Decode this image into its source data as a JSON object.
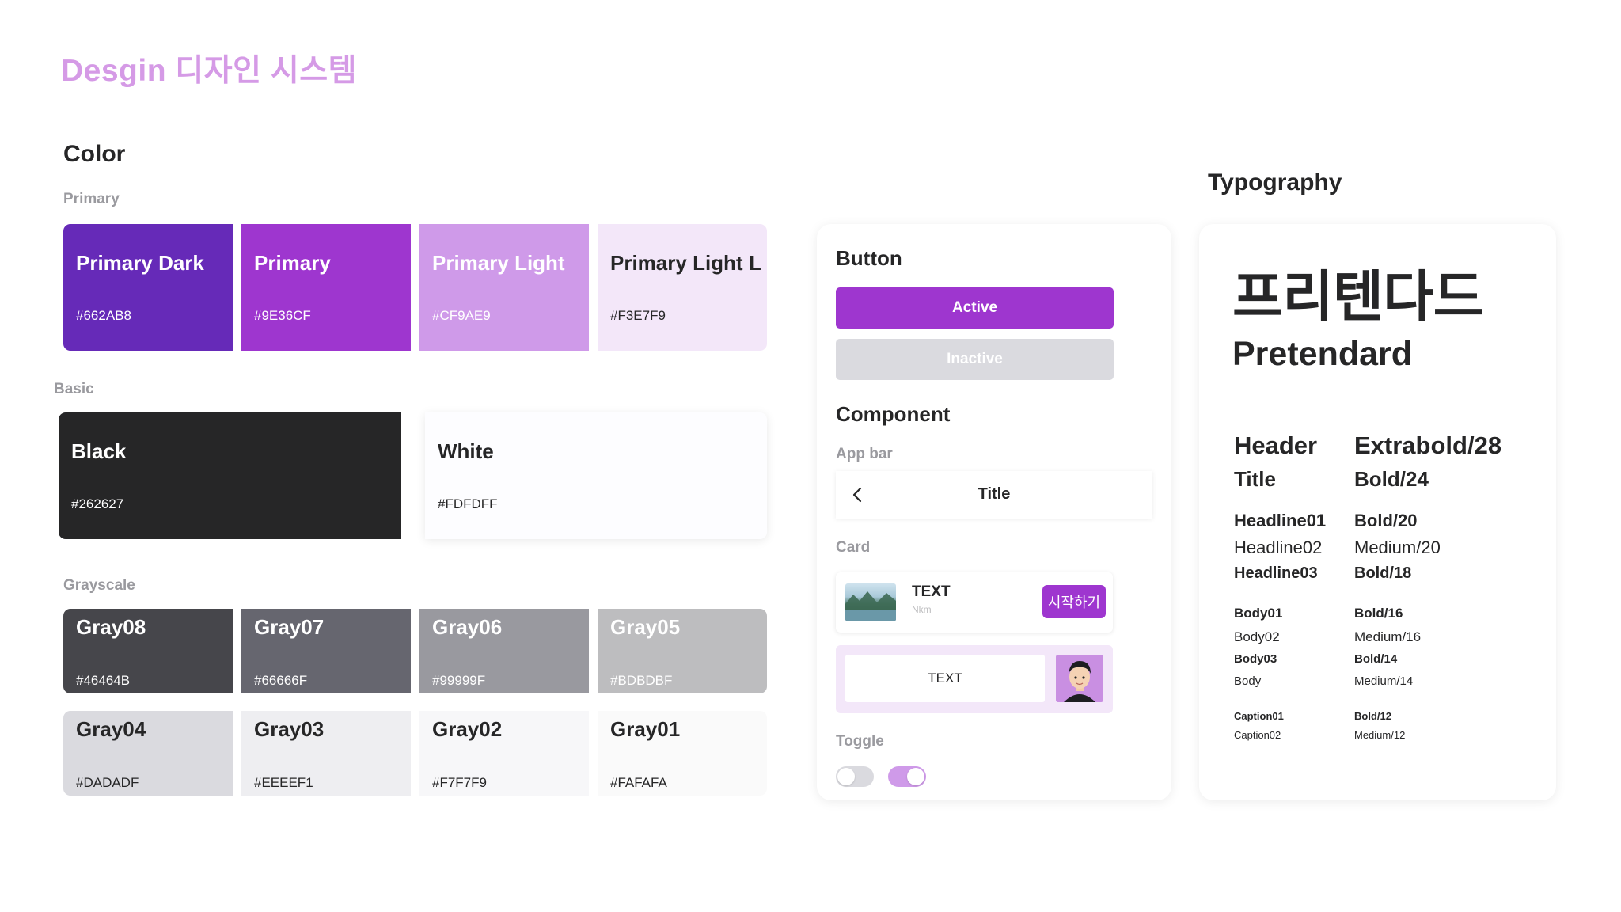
{
  "page_title": "Desgin 디자인 시스템",
  "color_section": {
    "title": "Color",
    "primary_label": "Primary",
    "primary": [
      {
        "name": "Primary Dark",
        "hex": "#662AB8"
      },
      {
        "name": "Primary",
        "hex": "#9E36CF"
      },
      {
        "name": "Primary Light",
        "hex": "#CF9AE9"
      },
      {
        "name": "Primary Light L",
        "hex": "#F3E7F9"
      }
    ],
    "basic_label": "Basic",
    "basic": [
      {
        "name": "Black",
        "hex": "#262627"
      },
      {
        "name": "White",
        "hex": "#FDFDFF"
      }
    ],
    "grayscale_label": "Grayscale",
    "grayscale_row1": [
      {
        "name": "Gray08",
        "hex": "#46464B"
      },
      {
        "name": "Gray07",
        "hex": "#66666F"
      },
      {
        "name": "Gray06",
        "hex": "#99999F"
      },
      {
        "name": "Gray05",
        "hex": "#BDBDBF"
      }
    ],
    "grayscale_row2": [
      {
        "name": "Gray04",
        "hex": "#DADADF"
      },
      {
        "name": "Gray03",
        "hex": "#EEEEF1"
      },
      {
        "name": "Gray02",
        "hex": "#F7F7F9"
      },
      {
        "name": "Gray01",
        "hex": "#FAFAFA"
      }
    ]
  },
  "components_panel": {
    "button_title": "Button",
    "active_label": "Active",
    "inactive_label": "Inactive",
    "component_title": "Component",
    "appbar_label": "App bar",
    "appbar_back_icon": "chevron-left-icon",
    "appbar_title": "Title",
    "card_label": "Card",
    "card1": {
      "title": "TEXT",
      "subtitle": "Nkm",
      "button": "시작하기",
      "thumbnail": "landscape-thumbnail"
    },
    "card2": {
      "text": "TEXT",
      "avatar": "avatar-illustration"
    },
    "toggle_label": "Toggle"
  },
  "typography_section": {
    "title": "Typography",
    "font_korean": "프리텐다드",
    "font_english": "Pretendard",
    "rows": [
      {
        "name": "Header",
        "spec": "Extrabold/28"
      },
      {
        "name": "Title",
        "spec": "Bold/24"
      },
      {
        "name": "Headline01",
        "spec": "Bold/20"
      },
      {
        "name": "Headline02",
        "spec": "Medium/20"
      },
      {
        "name": "Headline03",
        "spec": "Bold/18"
      },
      {
        "name": "Body01",
        "spec": "Bold/16"
      },
      {
        "name": "Body02",
        "spec": "Medium/16"
      },
      {
        "name": "Body03",
        "spec": "Bold/14"
      },
      {
        "name": "Body",
        "spec": "Medium/14"
      },
      {
        "name": "Caption01",
        "spec": "Bold/12"
      },
      {
        "name": "Caption02",
        "spec": "Medium/12"
      }
    ]
  },
  "colors": {
    "accent": "#9E36CF",
    "title_pink": "#D59AE6",
    "toggle_off": "#DADADF",
    "toggle_on": "#CF9AE9"
  }
}
